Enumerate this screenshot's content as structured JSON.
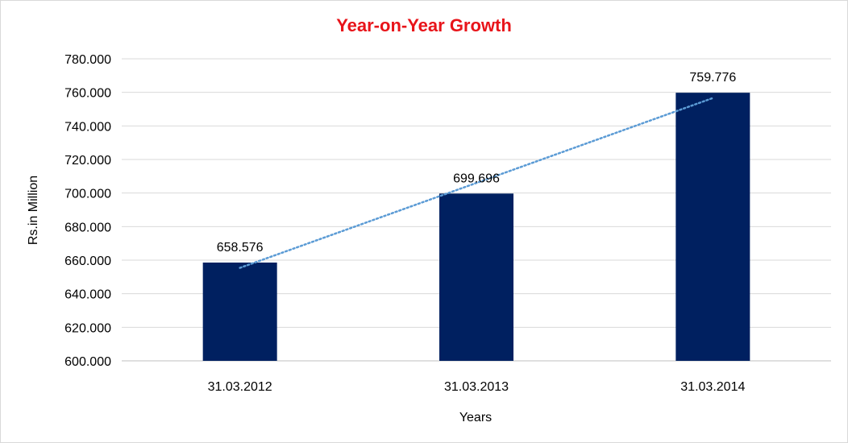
{
  "chart_data": {
    "type": "bar",
    "title": "Year-on-Year Growth",
    "xlabel": "Years",
    "ylabel": "Rs.in Million",
    "categories": [
      "31.03.2012",
      "31.03.2013",
      "31.03.2014"
    ],
    "values": [
      658.576,
      699.696,
      759.776
    ],
    "data_labels": [
      "658.576",
      "699.696",
      "759.776"
    ],
    "ylim": [
      600,
      780
    ],
    "ytick_step": 20,
    "ytick_labels": [
      "600.000",
      "620.000",
      "640.000",
      "660.000",
      "680.000",
      "700.000",
      "720.000",
      "740.000",
      "760.000",
      "780.000"
    ],
    "grid": true,
    "legend": "none",
    "trendline": {
      "type": "linear",
      "style": "dotted"
    },
    "colors": {
      "title": "#e8141a",
      "bar": "#002060",
      "trendline": "#5b9bd5",
      "grid": "#d9d9d9",
      "axis": "#bfbfbf"
    }
  }
}
